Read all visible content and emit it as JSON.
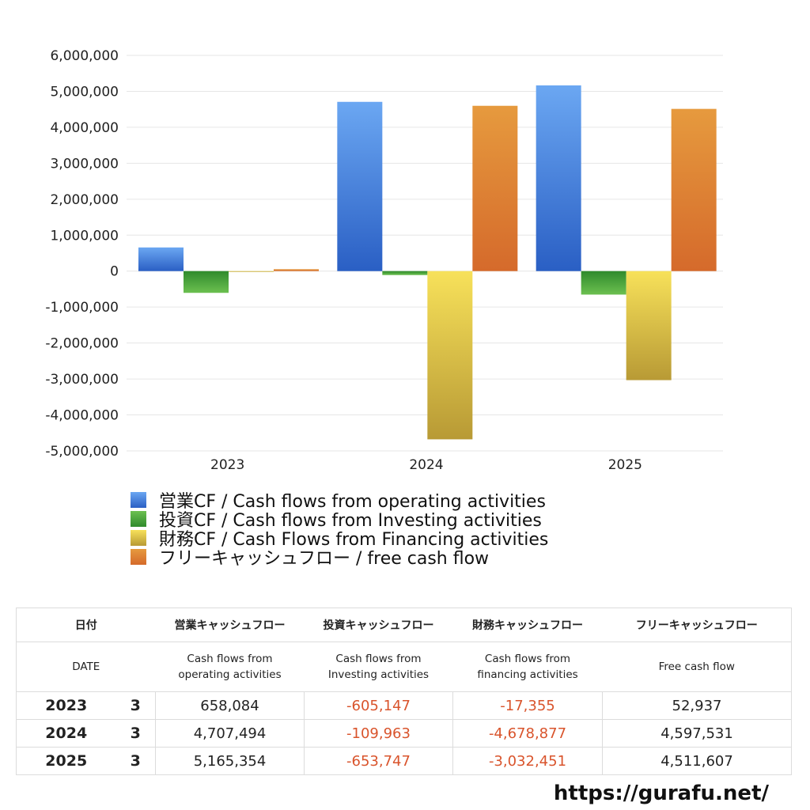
{
  "chart_data": {
    "type": "bar",
    "categories": [
      "2023",
      "2024",
      "2025"
    ],
    "series": [
      {
        "name": "営業CF / Cash flows from operating activities",
        "values": [
          658084,
          4707494,
          5165354
        ],
        "color_top": "#6ba7f2",
        "color_bottom": "#2a5fc4"
      },
      {
        "name": "投資CF / Cash flows from Investing activities",
        "values": [
          -605147,
          -109963,
          -653747
        ],
        "color_top": "#2f8a2c",
        "color_bottom": "#6cc050"
      },
      {
        "name": "財務CF / Cash Flows from Financing activities",
        "values": [
          -17355,
          -4678877,
          -3032451
        ],
        "color_top": "#f7e15a",
        "color_bottom": "#b89a35"
      },
      {
        "name": "フリーキャッシュフロー / free cash flow",
        "values": [
          52937,
          4597531,
          4511607
        ],
        "color_top": "#e69a3e",
        "color_bottom": "#d56a2b"
      }
    ],
    "yticks": [
      "6,000,000",
      "5,000,000",
      "4,000,000",
      "3,000,000",
      "2,000,000",
      "1,000,000",
      "0",
      "-1,000,000",
      "-2,000,000",
      "-3,000,000",
      "-4,000,000",
      "-5,000,000"
    ],
    "ylim": [
      -5000000,
      6000000
    ],
    "grid": true,
    "legend_position": "bottom-left"
  },
  "table": {
    "headers_ja": [
      "日付",
      "営業キャッシュフロー",
      "投資キャッシュフロー",
      "財務キャッシュフロー",
      "フリーキャッシュフロー"
    ],
    "headers_en": [
      "DATE",
      "Cash flows from\noperating activities",
      "Cash flows from\nInvesting activities",
      "Cash flows from\nfinancing activities",
      "Free cash flow"
    ],
    "rows": [
      {
        "year": "2023",
        "month": "3",
        "op": "658,084",
        "inv": "-605,147",
        "fin": "-17,355",
        "free": "52,937"
      },
      {
        "year": "2024",
        "month": "3",
        "op": "4,707,494",
        "inv": "-109,963",
        "fin": "-4,678,877",
        "free": "4,597,531"
      },
      {
        "year": "2025",
        "month": "3",
        "op": "5,165,354",
        "inv": "-653,747",
        "fin": "-3,032,451",
        "free": "4,511,607"
      }
    ]
  },
  "footer": "https://gurafu.net/",
  "colors": {
    "negative": "#d9542c",
    "grid": "#e6e6e6"
  }
}
